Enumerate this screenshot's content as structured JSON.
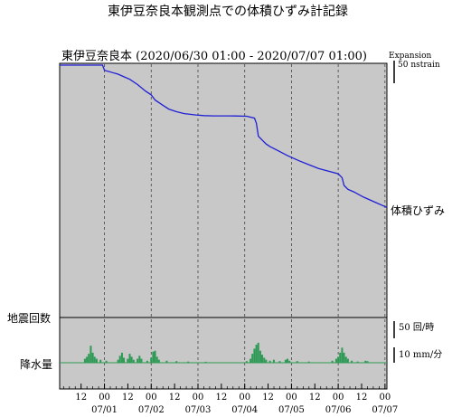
{
  "page_title": "東伊豆奈良本観測点での体積ひずみ計記録",
  "chart_data": {
    "type": "line",
    "title": "東伊豆奈良本 (2020/06/30 01:00 - 2020/07/07 01:00)",
    "x_range": [
      "2020-06-30 01:00",
      "2020-07-07 01:00"
    ],
    "x_tick_labels": [
      "12",
      "00",
      "12",
      "00",
      "12",
      "00",
      "12",
      "00",
      "12",
      "00",
      "12",
      "00",
      "12",
      "00"
    ],
    "x_date_labels": [
      "07/01",
      "07/02",
      "07/03",
      "07/04",
      "07/05",
      "07/06",
      "07/07"
    ],
    "grid": "dashed vertical lines at 00:00 each day",
    "colors": {
      "strain_line": "#1f1fd6",
      "rain_bars": "#2f9a55",
      "panel_bg": "#c8c8c8",
      "rain_baseline": "#2f9a55"
    },
    "strain": {
      "name": "体積ひずみ",
      "units": "nstrain",
      "scale_label": "Expansion",
      "scale_value_label": "50 nstrain",
      "scale_value": 50,
      "x_hours": [
        0,
        22,
        23,
        30,
        33,
        36,
        40,
        44,
        47,
        49,
        52,
        56,
        60,
        64,
        70,
        74,
        79,
        84,
        90,
        96,
        100,
        101,
        102,
        104,
        106,
        108,
        112,
        117,
        123,
        128,
        133,
        138,
        143,
        145,
        146,
        148,
        151,
        156,
        162,
        168
      ],
      "y_nstrain": [
        0,
        0,
        -4,
        -7,
        -9,
        -11,
        -15,
        -20,
        -23,
        -27,
        -30,
        -34,
        -36,
        -37.5,
        -38.5,
        -39,
        -39.2,
        -39.2,
        -39.3,
        -39.5,
        -41,
        -45,
        -55,
        -58,
        -61,
        -63,
        -66,
        -70,
        -74,
        -77,
        -80,
        -82,
        -84,
        -87,
        -93,
        -96,
        -98,
        -102,
        -106,
        -110
      ]
    },
    "seismic": {
      "label": "地震回数",
      "scale_label": "50 回/時",
      "scale_value": 50,
      "values_per_hour": []
    },
    "rainfall": {
      "label": "降水量",
      "scale_label": "10 mm/分",
      "scale_value": 10,
      "events": [
        {
          "x_hours": 13,
          "mm": 2.0
        },
        {
          "x_hours": 14,
          "mm": 3.0
        },
        {
          "x_hours": 15,
          "mm": 4.5
        },
        {
          "x_hours": 16,
          "mm": 8.5
        },
        {
          "x_hours": 17,
          "mm": 5.0
        },
        {
          "x_hours": 18,
          "mm": 3.0
        },
        {
          "x_hours": 19,
          "mm": 2.0
        },
        {
          "x_hours": 21,
          "mm": 1.5
        },
        {
          "x_hours": 24,
          "mm": 1.0
        },
        {
          "x_hours": 30,
          "mm": 1.5
        },
        {
          "x_hours": 31,
          "mm": 3.5
        },
        {
          "x_hours": 32,
          "mm": 5.0
        },
        {
          "x_hours": 33,
          "mm": 2.5
        },
        {
          "x_hours": 35,
          "mm": 2.0
        },
        {
          "x_hours": 36,
          "mm": 4.5
        },
        {
          "x_hours": 37,
          "mm": 3.0
        },
        {
          "x_hours": 38,
          "mm": 1.5
        },
        {
          "x_hours": 40,
          "mm": 2.0
        },
        {
          "x_hours": 41,
          "mm": 3.5
        },
        {
          "x_hours": 42,
          "mm": 2.0
        },
        {
          "x_hours": 45,
          "mm": 1.0
        },
        {
          "x_hours": 47,
          "mm": 2.5
        },
        {
          "x_hours": 48,
          "mm": 5.5
        },
        {
          "x_hours": 49,
          "mm": 6.0
        },
        {
          "x_hours": 50,
          "mm": 3.0
        },
        {
          "x_hours": 51,
          "mm": 1.5
        },
        {
          "x_hours": 55,
          "mm": 1.0
        },
        {
          "x_hours": 60,
          "mm": 0.8
        },
        {
          "x_hours": 66,
          "mm": 0.6
        },
        {
          "x_hours": 75,
          "mm": 0.5
        },
        {
          "x_hours": 96,
          "mm": 0.8
        },
        {
          "x_hours": 98,
          "mm": 2.0
        },
        {
          "x_hours": 99,
          "mm": 4.5
        },
        {
          "x_hours": 100,
          "mm": 7.0
        },
        {
          "x_hours": 101,
          "mm": 9.0
        },
        {
          "x_hours": 102,
          "mm": 10.0
        },
        {
          "x_hours": 103,
          "mm": 6.0
        },
        {
          "x_hours": 104,
          "mm": 4.0
        },
        {
          "x_hours": 105,
          "mm": 2.5
        },
        {
          "x_hours": 106,
          "mm": 1.5
        },
        {
          "x_hours": 108,
          "mm": 1.0
        },
        {
          "x_hours": 110,
          "mm": 1.5
        },
        {
          "x_hours": 113,
          "mm": 0.8
        },
        {
          "x_hours": 116,
          "mm": 1.5
        },
        {
          "x_hours": 117,
          "mm": 2.0
        },
        {
          "x_hours": 118,
          "mm": 1.0
        },
        {
          "x_hours": 122,
          "mm": 0.8
        },
        {
          "x_hours": 128,
          "mm": 0.6
        },
        {
          "x_hours": 140,
          "mm": 1.0
        },
        {
          "x_hours": 142,
          "mm": 2.0
        },
        {
          "x_hours": 143,
          "mm": 3.0
        },
        {
          "x_hours": 144,
          "mm": 5.0
        },
        {
          "x_hours": 145,
          "mm": 7.5
        },
        {
          "x_hours": 146,
          "mm": 5.0
        },
        {
          "x_hours": 147,
          "mm": 3.0
        },
        {
          "x_hours": 148,
          "mm": 2.0
        },
        {
          "x_hours": 150,
          "mm": 1.0
        },
        {
          "x_hours": 153,
          "mm": 0.6
        },
        {
          "x_hours": 157,
          "mm": 1.0
        },
        {
          "x_hours": 158,
          "mm": 0.8
        }
      ]
    }
  }
}
